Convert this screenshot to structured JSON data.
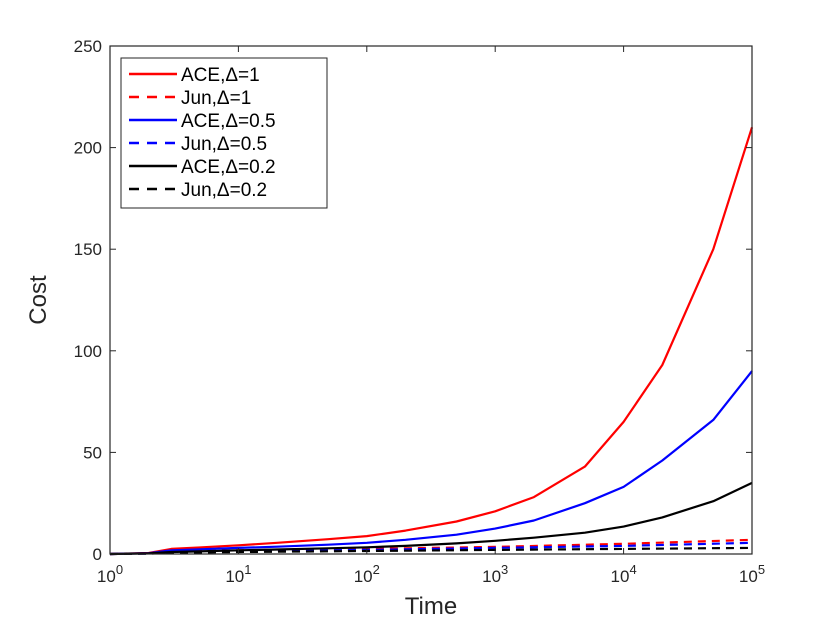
{
  "chart_data": {
    "type": "line",
    "title": "",
    "xlabel": "Time",
    "ylabel": "Cost",
    "xscale": "log",
    "xlim": [
      1,
      100000
    ],
    "ylim": [
      0,
      250
    ],
    "xticks": [
      {
        "value": 1,
        "base": "10",
        "exp": "0"
      },
      {
        "value": 10,
        "base": "10",
        "exp": "1"
      },
      {
        "value": 100,
        "base": "10",
        "exp": "2"
      },
      {
        "value": 1000,
        "base": "10",
        "exp": "3"
      },
      {
        "value": 10000,
        "base": "10",
        "exp": "4"
      },
      {
        "value": 100000,
        "base": "10",
        "exp": "5"
      }
    ],
    "yticks": [
      {
        "value": 0,
        "label": "0"
      },
      {
        "value": 50,
        "label": "50"
      },
      {
        "value": 100,
        "label": "100"
      },
      {
        "value": 150,
        "label": "150"
      },
      {
        "value": 200,
        "label": "200"
      },
      {
        "value": 250,
        "label": "250"
      }
    ],
    "grid": false,
    "legend_position": "top-left",
    "series": [
      {
        "name": "ACE,Δ=1",
        "color": "#ff0000",
        "style": "solid",
        "x": [
          1,
          2,
          3,
          5,
          10,
          20,
          50,
          100,
          200,
          500,
          1000,
          2000,
          5000,
          10000,
          20000,
          50000,
          100000
        ],
        "y": [
          0,
          0.5,
          2.5,
          3.2,
          4.3,
          5.5,
          7.3,
          8.8,
          11.5,
          16,
          21,
          28,
          43,
          65,
          93,
          150,
          210
        ]
      },
      {
        "name": "Jun,Δ=1",
        "color": "#ff0000",
        "style": "dashed",
        "x": [
          1,
          2,
          3,
          10,
          100,
          1000,
          10000,
          100000
        ],
        "y": [
          0,
          0.3,
          1.2,
          1.8,
          2.5,
          3.5,
          5,
          7
        ]
      },
      {
        "name": "ACE,Δ=0.5",
        "color": "#0000ff",
        "style": "solid",
        "x": [
          1,
          2,
          3,
          5,
          10,
          20,
          50,
          100,
          200,
          500,
          1000,
          2000,
          5000,
          10000,
          20000,
          50000,
          100000
        ],
        "y": [
          0,
          0.4,
          1.8,
          2.3,
          3,
          3.6,
          4.6,
          5.5,
          7,
          9.5,
          12.5,
          16.5,
          25,
          33,
          46,
          66,
          90
        ]
      },
      {
        "name": "Jun,Δ=0.5",
        "color": "#0000ff",
        "style": "dashed",
        "x": [
          1,
          2,
          3,
          10,
          100,
          1000,
          10000,
          100000
        ],
        "y": [
          0,
          0.2,
          1,
          1.5,
          2,
          3,
          4,
          5.5
        ]
      },
      {
        "name": "ACE,Δ=0.2",
        "color": "#000000",
        "style": "solid",
        "x": [
          1,
          2,
          3,
          5,
          10,
          20,
          50,
          100,
          200,
          500,
          1000,
          2000,
          5000,
          10000,
          20000,
          50000,
          100000
        ],
        "y": [
          0,
          0.3,
          1,
          1.3,
          1.8,
          2.2,
          2.8,
          3.3,
          4,
          5.2,
          6.5,
          8,
          10.5,
          13.5,
          18,
          26,
          35
        ]
      },
      {
        "name": "Jun,Δ=0.2",
        "color": "#000000",
        "style": "dashed",
        "x": [
          1,
          2,
          3,
          10,
          100,
          1000,
          10000,
          100000
        ],
        "y": [
          0,
          0.2,
          0.6,
          1,
          1.5,
          2,
          2.5,
          3
        ]
      }
    ]
  }
}
